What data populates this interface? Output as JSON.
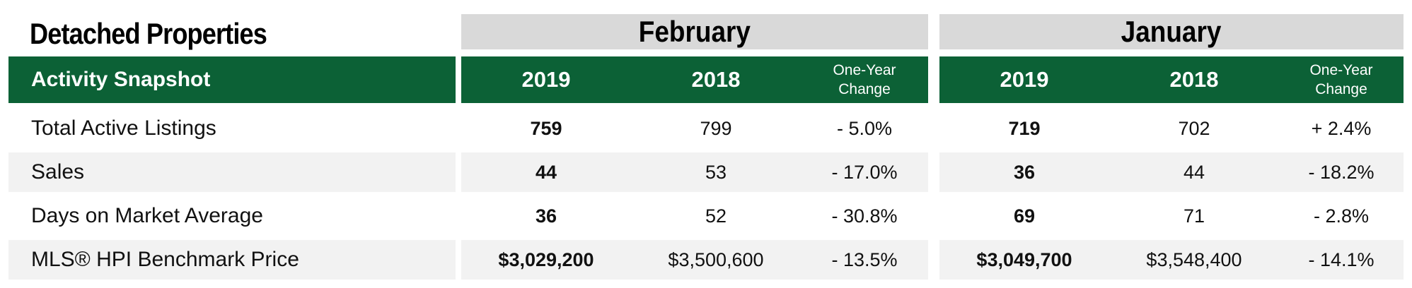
{
  "title": "Detached Properties",
  "header": {
    "label": "Activity Snapshot",
    "months": [
      {
        "name": "February",
        "year1": "2019",
        "year2": "2018",
        "change": "One-Year Change"
      },
      {
        "name": "January",
        "year1": "2019",
        "year2": "2018",
        "change": "One-Year Change"
      }
    ]
  },
  "rows": [
    {
      "label": "Total Active Listings",
      "feb": [
        "759",
        "799",
        "- 5.0%"
      ],
      "jan": [
        "719",
        "702",
        "+ 2.4%"
      ]
    },
    {
      "label": "Sales",
      "feb": [
        "44",
        "53",
        "- 17.0%"
      ],
      "jan": [
        "36",
        "44",
        "- 18.2%"
      ]
    },
    {
      "label": "Days on Market Average",
      "feb": [
        "36",
        "52",
        "- 30.8%"
      ],
      "jan": [
        "69",
        "71",
        "- 2.8%"
      ]
    },
    {
      "label": "MLS® HPI Benchmark Price",
      "feb": [
        "$3,029,200",
        "$3,500,600",
        "- 13.5%"
      ],
      "jan": [
        "$3,049,700",
        "$3,548,400",
        "- 14.1%"
      ]
    }
  ],
  "colors": {
    "header_green": "#0c6136",
    "month_gray": "#d9d9d9",
    "row_shade": "#f2f2f2"
  }
}
